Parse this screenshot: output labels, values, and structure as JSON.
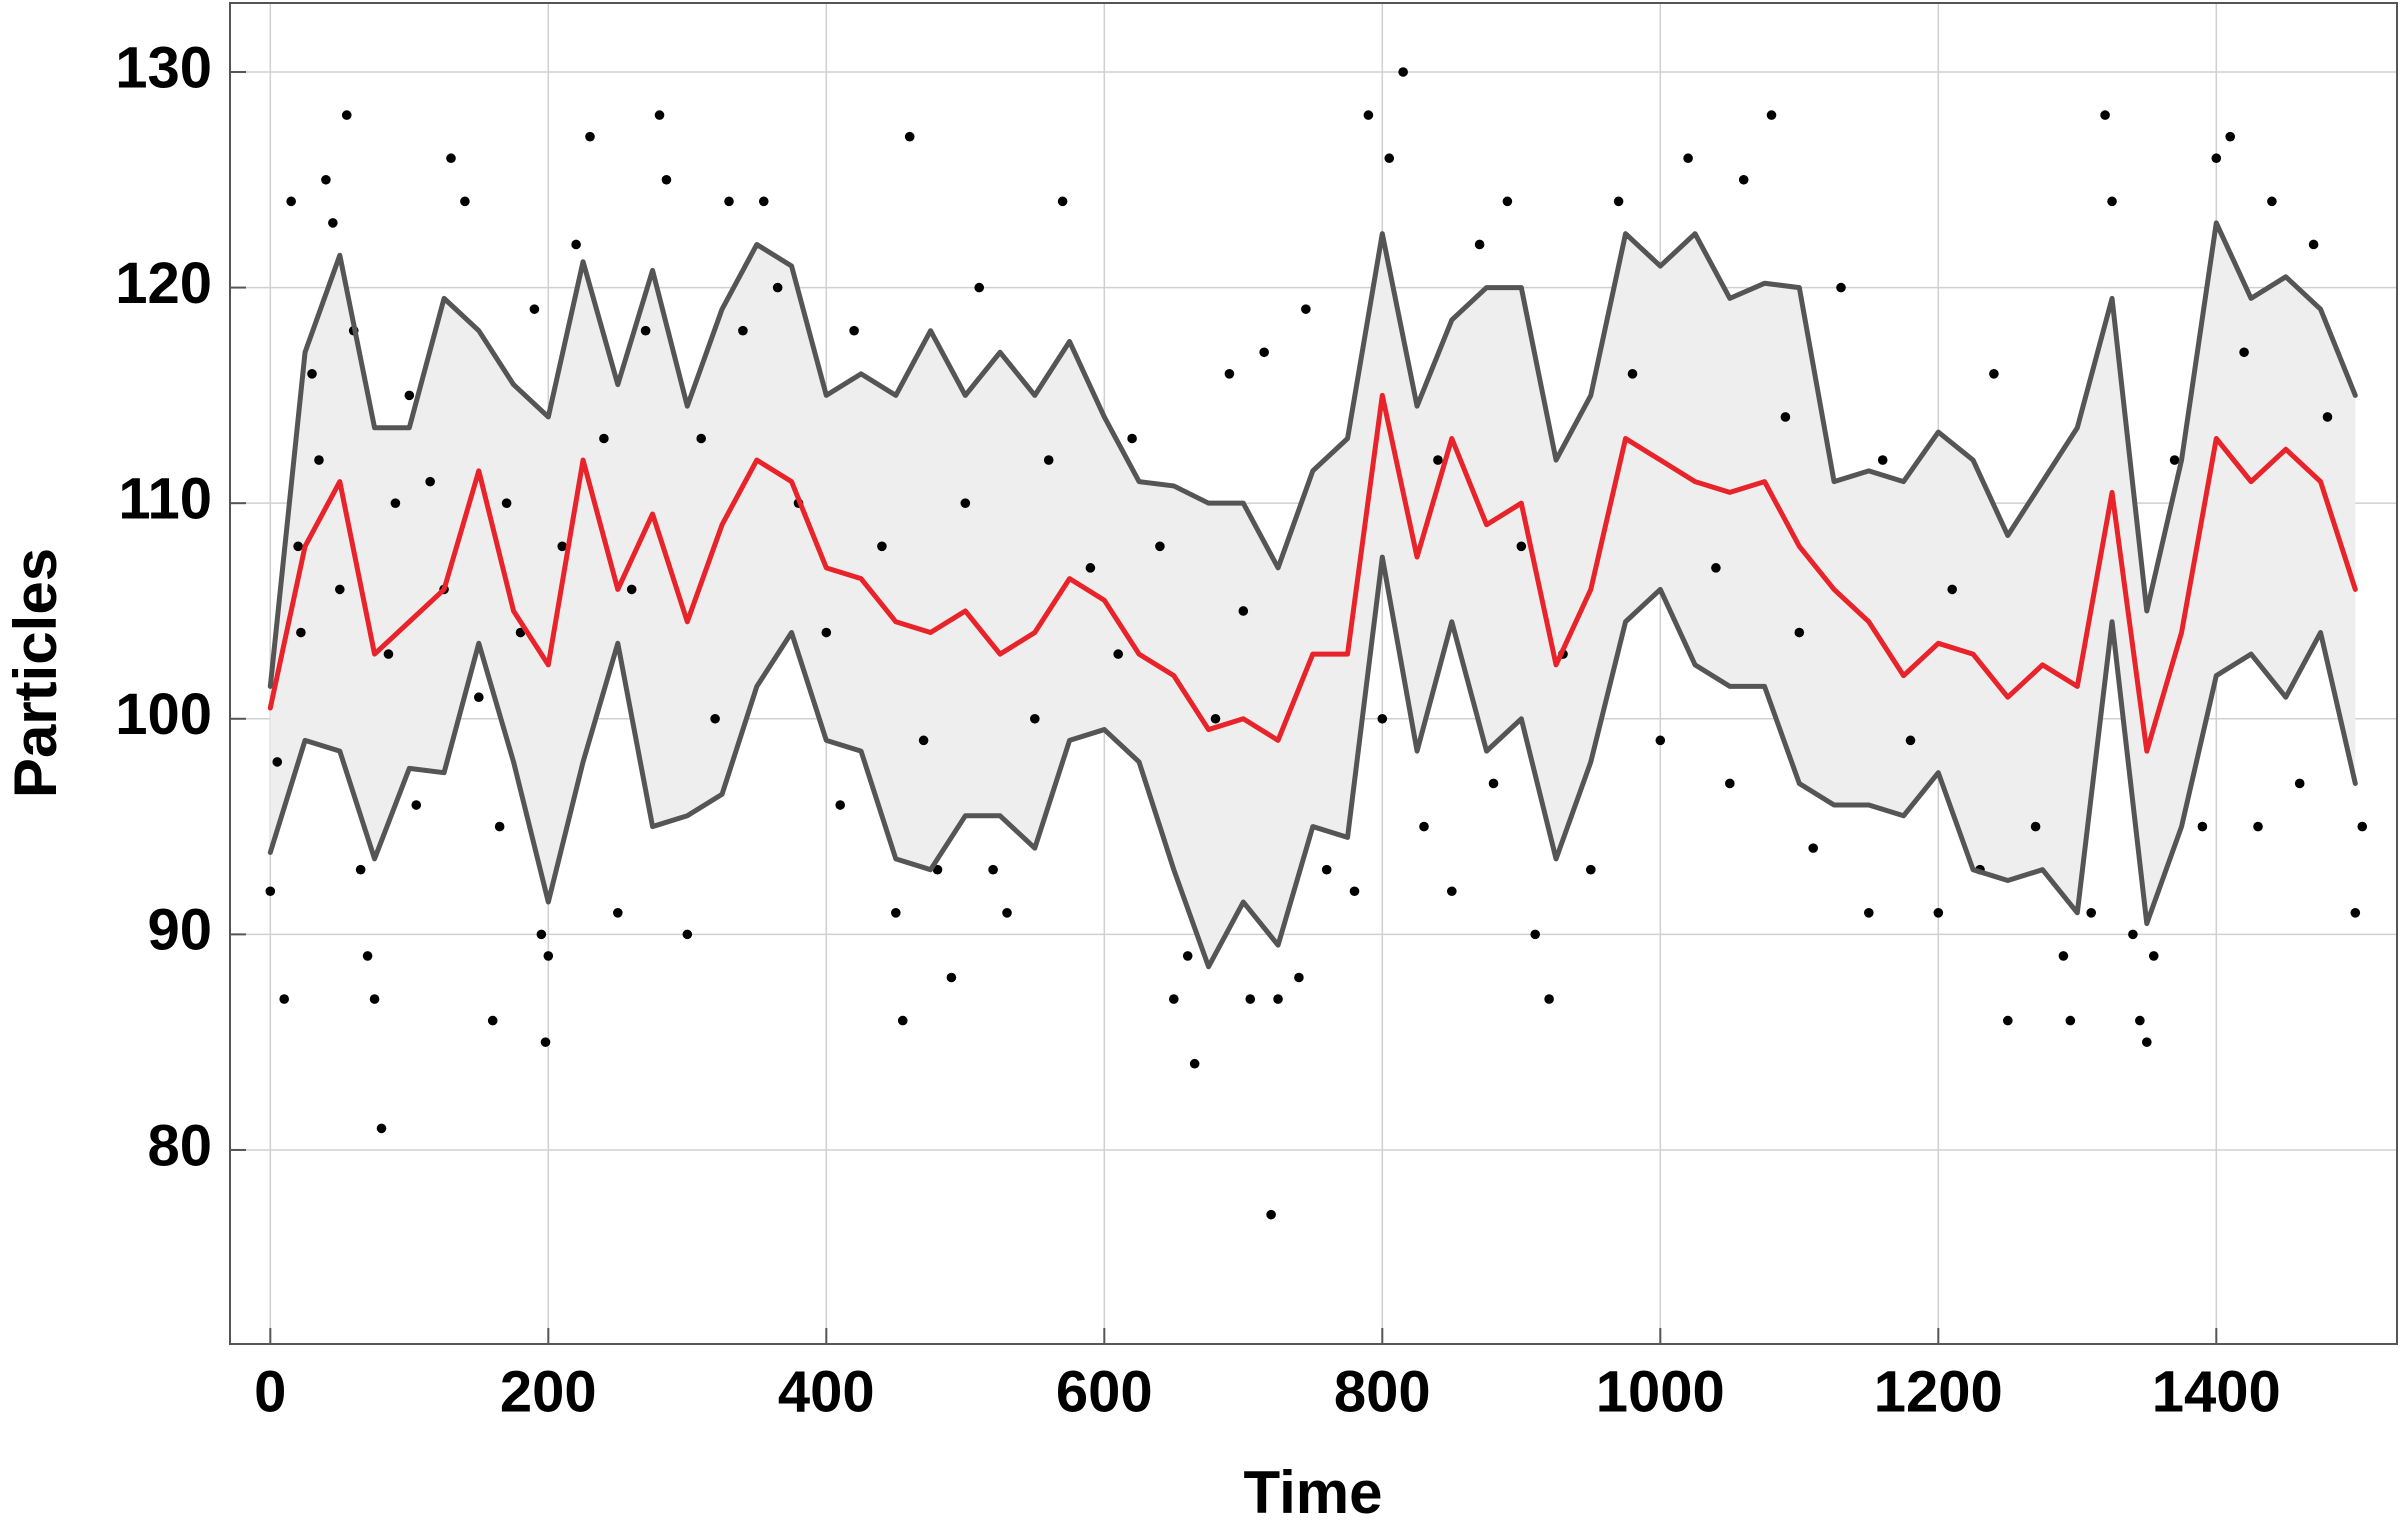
{
  "chart_data": {
    "type": "scatter",
    "xlabel": "Time",
    "ylabel": "Particles",
    "xlim": [
      -29,
      1530
    ],
    "ylim": [
      71,
      133.2
    ],
    "xticks": [
      0,
      200,
      400,
      600,
      800,
      1000,
      1200,
      1400
    ],
    "yticks": [
      80,
      90,
      100,
      110,
      120,
      130
    ],
    "grid": true,
    "band_color": "#eeeeee",
    "points": {
      "color": "#000000",
      "x": [
        0,
        5,
        10,
        15,
        20,
        22,
        30,
        35,
        40,
        45,
        50,
        55,
        60,
        65,
        70,
        75,
        80,
        85,
        90,
        100,
        105,
        115,
        125,
        130,
        140,
        150,
        160,
        165,
        170,
        180,
        190,
        195,
        198,
        200,
        210,
        220,
        230,
        240,
        250,
        260,
        270,
        280,
        285,
        300,
        310,
        320,
        330,
        340,
        355,
        365,
        380,
        400,
        410,
        420,
        440,
        450,
        455,
        460,
        470,
        480,
        490,
        500,
        510,
        520,
        530,
        550,
        560,
        570,
        590,
        610,
        620,
        640,
        650,
        660,
        665,
        680,
        690,
        700,
        705,
        715,
        720,
        725,
        740,
        745,
        760,
        780,
        790,
        800,
        805,
        815,
        830,
        840,
        850,
        870,
        880,
        890,
        900,
        910,
        920,
        930,
        950,
        970,
        980,
        1000,
        1020,
        1040,
        1050,
        1060,
        1080,
        1090,
        1100,
        1110,
        1130,
        1150,
        1160,
        1180,
        1200,
        1210,
        1230,
        1240,
        1250,
        1270,
        1290,
        1295,
        1310,
        1320,
        1325,
        1340,
        1345,
        1350,
        1355,
        1370,
        1390,
        1400,
        1410,
        1420,
        1430,
        1440,
        1460,
        1470,
        1480,
        1500,
        1505
      ],
      "values": [
        92,
        98,
        87,
        124,
        108,
        104,
        116,
        112,
        125,
        123,
        106,
        128,
        118,
        93,
        89,
        87,
        81,
        103,
        110,
        115,
        96,
        111,
        106,
        126,
        124,
        101,
        86,
        95,
        110,
        104,
        119,
        90,
        85,
        89,
        108,
        122,
        127,
        113,
        91,
        106,
        118,
        128,
        125,
        90,
        113,
        100,
        124,
        118,
        124,
        120,
        110,
        104,
        96,
        118,
        108,
        91,
        86,
        127,
        99,
        93,
        88,
        110,
        120,
        93,
        91,
        100,
        112,
        124,
        107,
        103,
        113,
        108,
        87,
        89,
        84,
        100,
        116,
        105,
        87,
        117,
        77,
        87,
        88,
        119,
        93,
        92,
        128,
        100,
        126,
        130,
        95,
        112,
        92,
        122,
        97,
        124,
        108,
        90,
        87,
        103,
        93,
        124,
        116,
        99,
        126,
        107,
        97,
        125,
        128,
        114,
        104,
        94,
        120,
        91,
        112,
        99,
        91,
        106,
        93,
        116,
        86,
        95,
        89,
        86,
        91,
        128,
        124,
        90,
        86,
        85,
        89,
        112,
        95,
        126,
        127,
        117,
        95,
        124,
        97,
        122,
        114,
        91,
        95
      ]
    },
    "curves": {
      "x": [
        0,
        25,
        50,
        75,
        100,
        125,
        150,
        175,
        200,
        225,
        250,
        275,
        300,
        325,
        350,
        375,
        400,
        425,
        450,
        475,
        500,
        525,
        550,
        575,
        600,
        625,
        650,
        675,
        700,
        725,
        750,
        775,
        800,
        825,
        850,
        875,
        900,
        925,
        950,
        975,
        1000,
        1025,
        1050,
        1075,
        1100,
        1125,
        1150,
        1175,
        1200,
        1225,
        1250,
        1275,
        1300,
        1325,
        1350,
        1375,
        1400,
        1425,
        1450,
        1475,
        1500
      ],
      "series": [
        {
          "color": "#555555",
          "values": [
            101.5,
            117,
            121.5,
            113.5,
            113.5,
            119.5,
            118,
            115.5,
            114,
            121.2,
            115.5,
            120.8,
            114.5,
            119,
            122,
            121,
            115,
            116,
            115,
            118,
            115,
            117,
            115,
            117.5,
            114,
            111,
            110.8,
            110,
            110,
            107,
            111.5,
            113,
            122.5,
            114.5,
            118.5,
            120,
            120,
            112,
            115,
            122.5,
            121,
            122.5,
            119.5,
            120.2,
            120,
            111,
            111.5,
            111,
            113.3,
            112,
            108.5,
            111,
            113.5,
            119.5,
            105,
            112,
            123,
            119.5,
            120.5,
            119,
            115
          ]
        },
        {
          "color": "#e8232a",
          "values": [
            100.5,
            108,
            111,
            103,
            104.5,
            106,
            111.5,
            105,
            102.5,
            112,
            106,
            109.5,
            104.5,
            109,
            112,
            111,
            107,
            106.5,
            104.5,
            104,
            105,
            103,
            104,
            106.5,
            105.5,
            103,
            102,
            99.5,
            100,
            99,
            103,
            103,
            115,
            107.5,
            113,
            109,
            110,
            102.5,
            106,
            113,
            112,
            111,
            110.5,
            111,
            108,
            106,
            104.5,
            102,
            103.5,
            103,
            101,
            102.5,
            101.5,
            110.5,
            98.5,
            104,
            113,
            111,
            112.5,
            111,
            106
          ]
        },
        {
          "color": "#555555",
          "values": [
            93.8,
            99,
            98.5,
            93.5,
            97.7,
            97.5,
            103.5,
            98,
            91.5,
            98,
            103.5,
            95,
            95.5,
            96.5,
            101.5,
            104,
            99,
            98.5,
            93.5,
            93,
            95.5,
            95.5,
            94,
            99,
            99.5,
            98,
            93,
            88.5,
            91.5,
            89.5,
            95,
            94.5,
            107.5,
            98.5,
            104.5,
            98.5,
            100,
            93.5,
            98,
            104.5,
            106,
            102.5,
            101.5,
            101.5,
            97,
            96,
            96,
            95.5,
            97.5,
            93,
            92.5,
            93,
            91,
            104.5,
            90.5,
            95,
            102,
            103,
            101,
            104,
            97
          ]
        }
      ]
    }
  }
}
